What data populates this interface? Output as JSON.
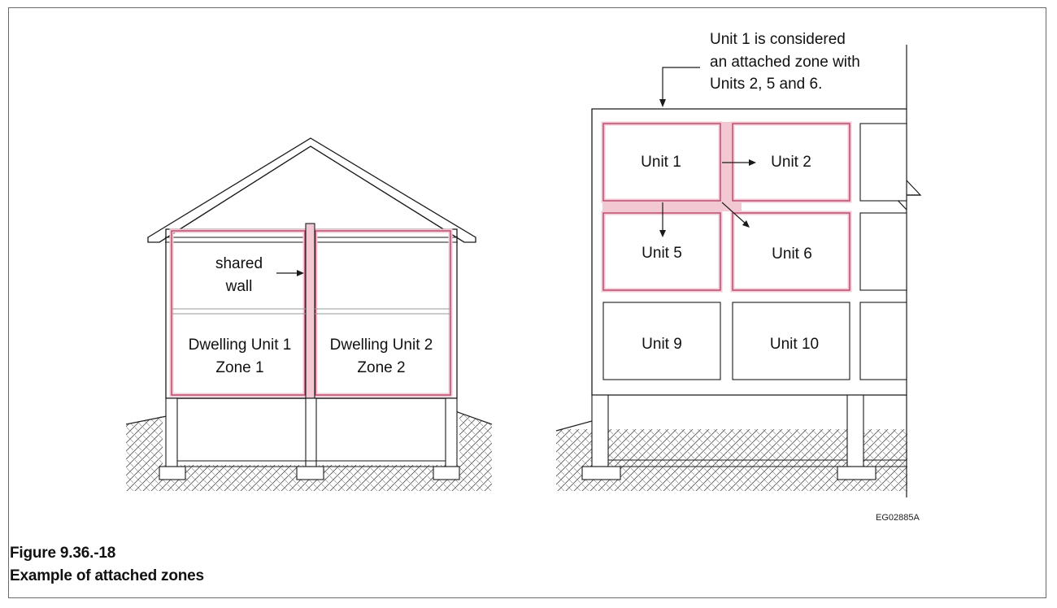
{
  "colors": {
    "zone_highlight": "#f2c9d3",
    "zone_outline": "#b0315a",
    "line": "#1a1a1a"
  },
  "house": {
    "label_shared_line1": "shared",
    "label_shared_line2": "wall",
    "unit1_line1": "Dwelling Unit 1",
    "unit1_line2": "Zone 1",
    "unit2_line1": "Dwelling Unit 2",
    "unit2_line2": "Zone 2"
  },
  "building": {
    "note_line1": "Unit 1 is considered",
    "note_line2": "an attached zone with",
    "note_line3": "Units 2, 5 and 6.",
    "units": [
      "Unit 1",
      "Unit 2",
      "Unit 5",
      "Unit 6",
      "Unit 9",
      "Unit 10"
    ]
  },
  "reference_code": "EG02885A",
  "caption": {
    "number": "Figure 9.36.-18",
    "title": "Example of attached zones"
  }
}
